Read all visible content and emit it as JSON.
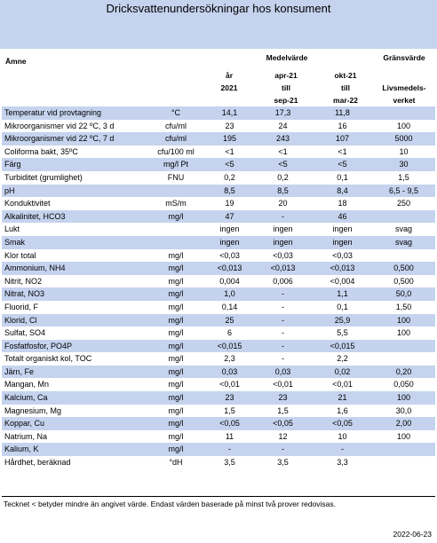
{
  "title": "Dricksvattenundersökningar hos konsument",
  "header": {
    "amne": "Ämne",
    "medelvarde": "Medelvärde",
    "gransvarde": "Gränsvärde",
    "col1": [
      "år",
      "2021"
    ],
    "col2": [
      "apr-21",
      "till",
      "sep-21"
    ],
    "col3": [
      "okt-21",
      "till",
      "mar-22"
    ],
    "col4": [
      "Livsmedels-",
      "verket"
    ]
  },
  "rows": [
    {
      "name": "Temperatur vid provtagning",
      "unit": "°C",
      "v1": "14,1",
      "v2": "17,3",
      "v3": "11,8",
      "limit": ""
    },
    {
      "name": "Mikroorganismer vid 22 ºC, 3 d",
      "unit": "cfu/ml",
      "v1": "23",
      "v2": "24",
      "v3": "16",
      "limit": "100"
    },
    {
      "name": "Mikroorganismer vid 22 ºC, 7 d",
      "unit": "cfu/ml",
      "v1": "195",
      "v2": "243",
      "v3": "107",
      "limit": "5000"
    },
    {
      "name": "Coliforma bakt, 35ºC",
      "unit": "cfu/100 ml",
      "v1": "<1",
      "v2": "<1",
      "v3": "<1",
      "limit": "10"
    },
    {
      "name": "Färg",
      "unit": "mg/l Pt",
      "v1": "<5",
      "v2": "<5",
      "v3": "<5",
      "limit": "30"
    },
    {
      "name": "Turbiditet (grumlighet)",
      "unit": "FNU",
      "v1": "0,2",
      "v2": "0,2",
      "v3": "0,1",
      "limit": "1,5"
    },
    {
      "name": "pH",
      "unit": "",
      "v1": "8,5",
      "v2": "8,5",
      "v3": "8,4",
      "limit": "6,5 - 9,5"
    },
    {
      "name": "Konduktivitet",
      "unit": "mS/m",
      "v1": "19",
      "v2": "20",
      "v3": "18",
      "limit": "250"
    },
    {
      "name": "Alkalinitet, HCO3",
      "unit": "mg/l",
      "v1": "47",
      "v2": "-",
      "v3": "46",
      "limit": ""
    },
    {
      "name": "Lukt",
      "unit": "",
      "v1": "ingen",
      "v2": "ingen",
      "v3": "ingen",
      "limit": "svag"
    },
    {
      "name": "Smak",
      "unit": "",
      "v1": "ingen",
      "v2": "ingen",
      "v3": "ingen",
      "limit": "svag"
    },
    {
      "name": "Klor total",
      "unit": "mg/l",
      "v1": "<0,03",
      "v2": "<0,03",
      "v3": "<0,03",
      "limit": ""
    },
    {
      "name": "Ammonium, NH4",
      "unit": "mg/l",
      "v1": "<0,013",
      "v2": "<0,013",
      "v3": "<0,013",
      "limit": "0,500"
    },
    {
      "name": "Nitrit, NO2",
      "unit": "mg/l",
      "v1": "0,004",
      "v2": "0,006",
      "v3": "<0,004",
      "limit": "0,500"
    },
    {
      "name": "Nitrat, NO3",
      "unit": "mg/l",
      "v1": "1,0",
      "v2": "-",
      "v3": "1,1",
      "limit": "50,0"
    },
    {
      "name": "Fluorid, F",
      "unit": "mg/l",
      "v1": "0,14",
      "v2": "-",
      "v3": "0,1",
      "limit": "1,50"
    },
    {
      "name": "Klorid, Cl",
      "unit": "mg/l",
      "v1": "25",
      "v2": "-",
      "v3": "25,9",
      "limit": "100"
    },
    {
      "name": "Sulfat, SO4",
      "unit": "mg/l",
      "v1": "6",
      "v2": "-",
      "v3": "5,5",
      "limit": "100"
    },
    {
      "name": "Fosfatfosfor, PO4P",
      "unit": "mg/l",
      "v1": "<0,015",
      "v2": "-",
      "v3": "<0,015",
      "limit": ""
    },
    {
      "name": "Totalt organiskt kol, TOC",
      "unit": "mg/l",
      "v1": "2,3",
      "v2": "-",
      "v3": "2,2",
      "limit": ""
    },
    {
      "name": "Järn, Fe",
      "unit": "mg/l",
      "v1": "0,03",
      "v2": "0,03",
      "v3": "0,02",
      "limit": "0,20"
    },
    {
      "name": "Mangan, Mn",
      "unit": "mg/l",
      "v1": "<0,01",
      "v2": "<0,01",
      "v3": "<0,01",
      "limit": "0,050"
    },
    {
      "name": "Kalcium, Ca",
      "unit": "mg/l",
      "v1": "23",
      "v2": "23",
      "v3": "21",
      "limit": "100"
    },
    {
      "name": "Magnesium, Mg",
      "unit": "mg/l",
      "v1": "1,5",
      "v2": "1,5",
      "v3": "1,6",
      "limit": "30,0"
    },
    {
      "name": "Koppar, Cu",
      "unit": "mg/l",
      "v1": "<0,05",
      "v2": "<0,05",
      "v3": "<0,05",
      "limit": "2,00"
    },
    {
      "name": "Natrium, Na",
      "unit": "mg/l",
      "v1": "11",
      "v2": "12",
      "v3": "10",
      "limit": "100"
    },
    {
      "name": "Kalium, K",
      "unit": "mg/l",
      "v1": "-",
      "v2": "-",
      "v3": "-",
      "limit": ""
    },
    {
      "name": "Hårdhet, beräknad",
      "unit": "°dH",
      "v1": "3,5",
      "v2": "3,5",
      "v3": "3,3",
      "limit": ""
    }
  ],
  "footnote": "Tecknet < betyder mindre än angivet värde. Endast värden baserade på minst två prover redovisas.",
  "date": "2022-06-23",
  "colors": {
    "band": "#c5d3ee"
  }
}
